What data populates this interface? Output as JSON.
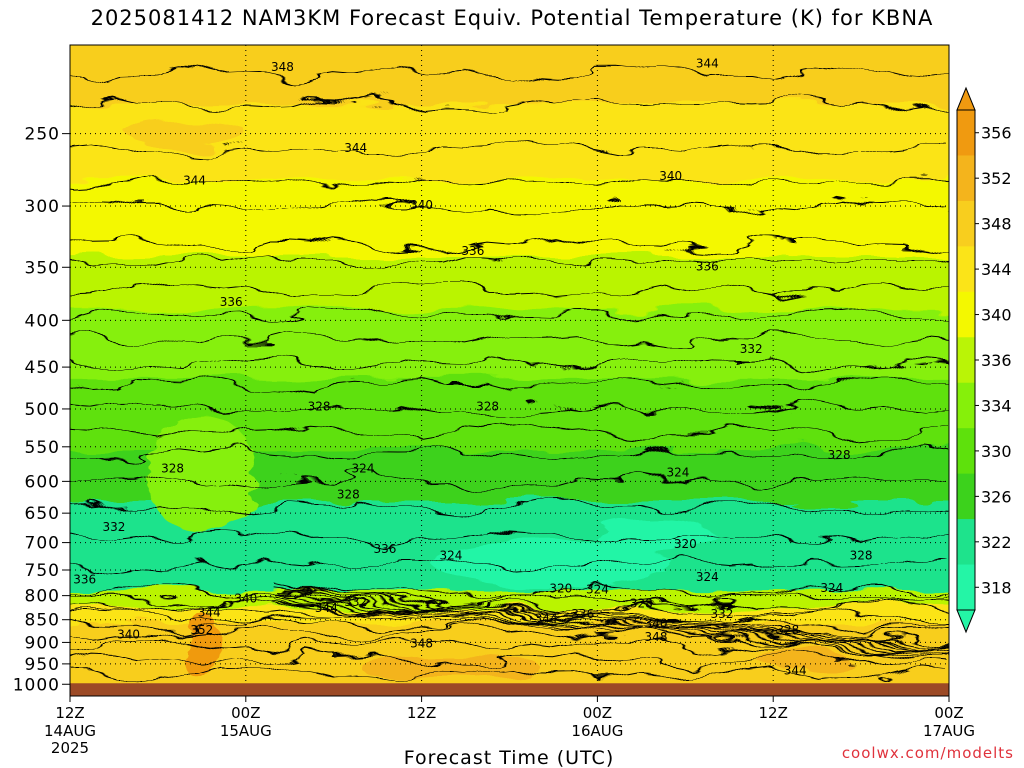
{
  "title": "2025081412 NAM3KM Forecast Equiv. Potential Temperature (K) for KBNA",
  "credit": "coolwx.com/modelts",
  "colors": {
    "c318": "#24f5a6",
    "c322": "#1ee38c",
    "c326": "#3cd21c",
    "c330": "#5ee10c",
    "c334": "#86f00a",
    "c336": "#baf406",
    "c340": "#f4f800",
    "c344": "#fbe418",
    "c348": "#f8ce1e",
    "c352": "#f4b41c",
    "c356": "#f09a10",
    "ground": "#9c4a26"
  },
  "chart_data": {
    "type": "heatmap",
    "title": "2025081412 NAM3KM Forecast Equiv. Potential Temperature (K) for KBNA",
    "xlabel": "Forecast Time (UTC)",
    "x_ticks": [
      {
        "label": "12Z",
        "sub1": "14AUG",
        "sub2": "2025",
        "hour": 0
      },
      {
        "label": "00Z",
        "sub1": "15AUG",
        "sub2": "",
        "hour": 12
      },
      {
        "label": "12Z",
        "sub1": "",
        "sub2": "",
        "hour": 24
      },
      {
        "label": "00Z",
        "sub1": "16AUG",
        "sub2": "",
        "hour": 36
      },
      {
        "label": "12Z",
        "sub1": "",
        "sub2": "",
        "hour": 48
      },
      {
        "label": "00Z",
        "sub1": "17AUG",
        "sub2": "",
        "hour": 60
      }
    ],
    "x_range_hours": [
      0,
      60
    ],
    "y_axis": "pressure (hPa), inverted, log scale",
    "y_range": [
      200,
      1030
    ],
    "y_ticks": [
      250,
      300,
      350,
      400,
      450,
      500,
      550,
      600,
      650,
      700,
      750,
      800,
      850,
      900,
      950,
      1000
    ],
    "colorbar_levels": [
      318,
      322,
      326,
      330,
      334,
      336,
      340,
      344,
      348,
      352,
      356
    ],
    "colorbar_labels": [
      "356",
      "352",
      "348",
      "344",
      "340",
      "336",
      "334",
      "330",
      "326",
      "322",
      "318"
    ],
    "contour_labels": [
      {
        "text": "348",
        "hour": 14.5,
        "p": 212
      },
      {
        "text": "344",
        "hour": 43.5,
        "p": 210
      },
      {
        "text": "344",
        "hour": 19.5,
        "p": 260
      },
      {
        "text": "344",
        "hour": 8.5,
        "p": 282
      },
      {
        "text": "340",
        "hour": 41,
        "p": 279
      },
      {
        "text": "340",
        "hour": 24,
        "p": 300
      },
      {
        "text": "336",
        "hour": 27.5,
        "p": 337
      },
      {
        "text": "336",
        "hour": 43.5,
        "p": 350
      },
      {
        "text": "336",
        "hour": 11,
        "p": 383
      },
      {
        "text": "332",
        "hour": 46.5,
        "p": 431
      },
      {
        "text": "328",
        "hour": 17,
        "p": 498
      },
      {
        "text": "328",
        "hour": 28.5,
        "p": 498
      },
      {
        "text": "328",
        "hour": 7,
        "p": 582
      },
      {
        "text": "324",
        "hour": 20,
        "p": 582
      },
      {
        "text": "328",
        "hour": 19,
        "p": 622
      },
      {
        "text": "324",
        "hour": 41.5,
        "p": 588
      },
      {
        "text": "328",
        "hour": 52.5,
        "p": 563
      },
      {
        "text": "332",
        "hour": 3,
        "p": 675
      },
      {
        "text": "320",
        "hour": 42,
        "p": 704
      },
      {
        "text": "336",
        "hour": 21.5,
        "p": 713
      },
      {
        "text": "324",
        "hour": 26,
        "p": 725
      },
      {
        "text": "328",
        "hour": 54,
        "p": 725
      },
      {
        "text": "324",
        "hour": 43.5,
        "p": 765
      },
      {
        "text": "320",
        "hour": 33.5,
        "p": 788
      },
      {
        "text": "324",
        "hour": 36,
        "p": 790
      },
      {
        "text": "324",
        "hour": 52,
        "p": 787
      },
      {
        "text": "336",
        "hour": 1,
        "p": 770
      },
      {
        "text": "340",
        "hour": 12,
        "p": 808
      },
      {
        "text": "332",
        "hour": 19.5,
        "p": 815
      },
      {
        "text": "344",
        "hour": 17.5,
        "p": 827
      },
      {
        "text": "328",
        "hour": 39,
        "p": 818
      },
      {
        "text": "344",
        "hour": 9.5,
        "p": 837
      },
      {
        "text": "336",
        "hour": 35,
        "p": 840
      },
      {
        "text": "344",
        "hour": 32.5,
        "p": 850
      },
      {
        "text": "332",
        "hour": 44.5,
        "p": 840
      },
      {
        "text": "340",
        "hour": 40,
        "p": 860
      },
      {
        "text": "328",
        "hour": 49,
        "p": 874
      },
      {
        "text": "352",
        "hour": 9,
        "p": 875
      },
      {
        "text": "340",
        "hour": 4,
        "p": 885
      },
      {
        "text": "348",
        "hour": 40,
        "p": 890
      },
      {
        "text": "348",
        "hour": 24,
        "p": 905
      },
      {
        "text": "344",
        "hour": 49.5,
        "p": 968
      }
    ],
    "field_bands": [
      {
        "value": 348,
        "top_p": 200
      },
      {
        "value": 344,
        "top_p": 235
      },
      {
        "value": 340,
        "top_p": 285
      },
      {
        "value": 336,
        "top_p": 345
      },
      {
        "value": 334,
        "top_p": 395
      },
      {
        "value": 330,
        "top_p": 470
      },
      {
        "value": 326,
        "top_p": 560
      },
      {
        "value": 322,
        "top_p": 640
      },
      {
        "value": 336,
        "top_p": 800
      },
      {
        "value": 344,
        "top_p": 835
      },
      {
        "value": 348,
        "top_p": 870
      }
    ]
  }
}
